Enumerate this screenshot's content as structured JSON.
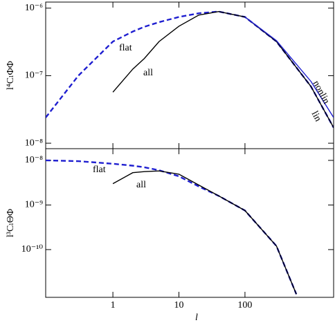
{
  "chart_data": [
    {
      "type": "line",
      "ylabel": "l⁴CₗΦΦ",
      "log_x": true,
      "log_y": true,
      "x": [
        0.096,
        0.3,
        1,
        2,
        3,
        5,
        10,
        20,
        40,
        100,
        300,
        1000,
        2200
      ],
      "series": [
        {
          "name": "flat",
          "color": "#1f1fd0",
          "dashed": true,
          "values": [
            2.4e-08,
            1e-07,
            3.2e-07,
            4.5e-07,
            5.3e-07,
            6.2e-07,
            7.4e-07,
            8.4e-07,
            8.9e-07,
            7.4e-07,
            3.2e-07,
            6.9e-08,
            1.7e-08
          ]
        },
        {
          "name": "all",
          "color": "#000000",
          "dashed": false,
          "values": [
            null,
            null,
            5.7e-08,
            1.25e-07,
            1.8e-07,
            3.2e-07,
            5.4e-07,
            7.9e-07,
            8.9e-07,
            7.4e-07,
            3.2e-07,
            6.9e-08,
            1.7e-08
          ]
        },
        {
          "name": "nonlin",
          "color": "#1f1fd0",
          "dashed": false,
          "values": [
            null,
            null,
            null,
            null,
            null,
            null,
            null,
            null,
            null,
            7.4e-07,
            3.3e-07,
            8.2e-08,
            2.4e-08
          ]
        }
      ],
      "annotations": [
        "lin"
      ],
      "xlim": [
        0.096,
        2200
      ],
      "xticks": [
        1,
        10,
        100
      ],
      "ylim": [
        8.3e-09,
        1.23e-06
      ],
      "yticks": [
        {
          "value": 1e-06,
          "label": "10⁻⁶"
        },
        {
          "value": 1e-07,
          "label": "10⁻⁷"
        },
        {
          "value": 1e-08,
          "label": "10⁻⁸"
        }
      ]
    },
    {
      "type": "line",
      "ylabel": "l³CₗΘΦ",
      "xlabel": "l",
      "log_x": true,
      "log_y": true,
      "x": [
        0.096,
        0.3,
        1,
        2,
        3,
        5,
        10,
        20,
        40,
        100,
        300,
        600
      ],
      "series": [
        {
          "name": "flat",
          "color": "#1f1fd0",
          "dashed": true,
          "values": [
            1e-08,
            9.6e-09,
            8.4e-09,
            7.6e-09,
            7e-09,
            6e-09,
            4.4e-09,
            2.6e-09,
            1.6e-09,
            7.5e-10,
            1.2e-10,
            1e-11
          ]
        },
        {
          "name": "all",
          "color": "#000000",
          "dashed": false,
          "values": [
            null,
            null,
            3e-09,
            5.3e-09,
            5.6e-09,
            5.8e-09,
            4.9e-09,
            2.8e-09,
            1.6e-09,
            7.5e-10,
            1.2e-10,
            1e-11
          ]
        }
      ],
      "xlim": [
        0.096,
        2200
      ],
      "xticks": [
        1,
        10,
        100
      ],
      "ylim": [
        8.5e-12,
        1.83e-08
      ],
      "yticks": [
        {
          "value": 1e-08,
          "label": "10⁻⁸"
        },
        {
          "value": 1e-09,
          "label": "10⁻⁹"
        },
        {
          "value": 1e-10,
          "label": "10⁻¹⁰"
        }
      ]
    }
  ]
}
